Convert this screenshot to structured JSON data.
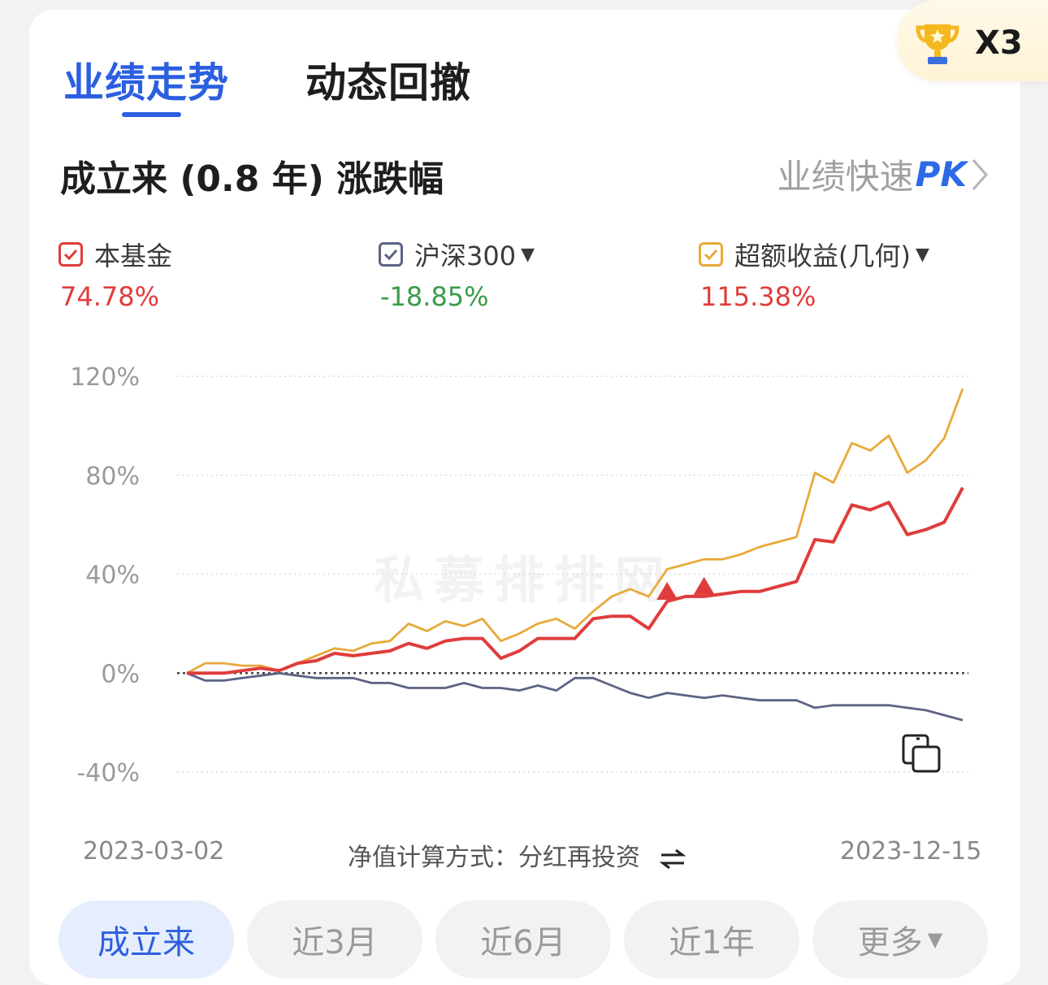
{
  "tabs": [
    {
      "label": "业绩走势",
      "active": true
    },
    {
      "label": "动态回撤",
      "active": false
    }
  ],
  "trophy": {
    "count": "X3"
  },
  "section": {
    "title": "成立来 (0.8 年) 涨跌幅",
    "pk_link": {
      "prefix": "业绩快速",
      "suffix": "PK"
    }
  },
  "legend": [
    {
      "label": "本基金",
      "value": "74.78%",
      "color": "#e03c3c",
      "value_color": "#e03c3c",
      "dropdown": false
    },
    {
      "label": "沪深300",
      "value": "-18.85%",
      "color": "#5d6384",
      "value_color": "#3a9a4a",
      "dropdown": true
    },
    {
      "label": "超额收益(几何)",
      "value": "115.38%",
      "color": "#e8a93a",
      "value_color": "#e03c3c",
      "dropdown": true
    }
  ],
  "watermark": "私募排排网",
  "footer": {
    "start_date": "2023-03-02",
    "end_date": "2023-12-15",
    "method_label": "净值计算方式：分红再投资"
  },
  "range_buttons": [
    {
      "label": "成立来",
      "active": true
    },
    {
      "label": "近3月",
      "active": false
    },
    {
      "label": "近6月",
      "active": false
    },
    {
      "label": "近1年",
      "active": false
    },
    {
      "label": "更多",
      "active": false,
      "dropdown": true
    }
  ],
  "chart_data": {
    "type": "line",
    "x_start": "2023-03-02",
    "x_end": "2023-12-15",
    "ylim": [
      -40,
      120
    ],
    "yticks": [
      120,
      80,
      40,
      0,
      -40
    ],
    "ytick_labels": [
      "120%",
      "80%",
      "40%",
      "0%",
      "-40%"
    ],
    "grid": true,
    "series": [
      {
        "name": "本基金",
        "color": "#e03c3c",
        "values": [
          0,
          0,
          0,
          1,
          2,
          1,
          4,
          5,
          8,
          7,
          8,
          9,
          12,
          10,
          13,
          14,
          14,
          6,
          9,
          14,
          14,
          14,
          22,
          23,
          23,
          18,
          29,
          31,
          31,
          32,
          33,
          33,
          35,
          37,
          54,
          53,
          68,
          66,
          69,
          56,
          58,
          61,
          75
        ]
      },
      {
        "name": "沪深300",
        "color": "#5d6384",
        "values": [
          0,
          -3,
          -3,
          -2,
          -1,
          0,
          -1,
          -2,
          -2,
          -2,
          -4,
          -4,
          -6,
          -6,
          -6,
          -4,
          -6,
          -6,
          -7,
          -5,
          -7,
          -2,
          -2,
          -5,
          -8,
          -10,
          -8,
          -9,
          -10,
          -9,
          -10,
          -11,
          -11,
          -11,
          -14,
          -13,
          -13,
          -13,
          -13,
          -14,
          -15,
          -17,
          -19
        ]
      },
      {
        "name": "超额收益(几何)",
        "color": "#e8a93a",
        "values": [
          0,
          4,
          4,
          3,
          3,
          1,
          4,
          7,
          10,
          9,
          12,
          13,
          20,
          17,
          21,
          19,
          22,
          13,
          16,
          20,
          22,
          18,
          25,
          31,
          34,
          31,
          42,
          44,
          46,
          46,
          48,
          51,
          53,
          55,
          81,
          77,
          93,
          90,
          96,
          81,
          86,
          95,
          115
        ]
      }
    ],
    "markers": [
      {
        "series": "本基金",
        "index": 26
      },
      {
        "series": "本基金",
        "index": 28
      }
    ]
  }
}
